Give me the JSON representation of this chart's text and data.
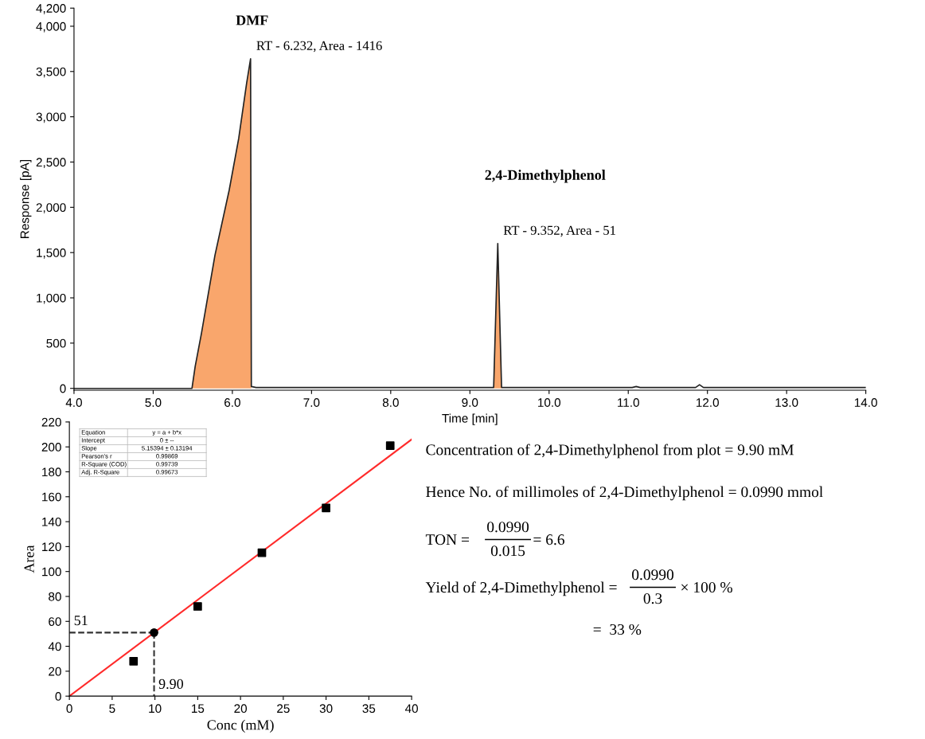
{
  "chart_data": [
    {
      "type": "line",
      "xlabel": "Time [min]",
      "ylabel": "Response [pA]",
      "xlim": [
        4.0,
        14.0
      ],
      "xticks": [
        {
          "value": 4,
          "label": "4.0"
        },
        {
          "value": 5,
          "label": "5.0"
        },
        {
          "value": 6,
          "label": "6.0"
        },
        {
          "value": 7,
          "label": "7.0"
        },
        {
          "value": 8,
          "label": "8.0"
        },
        {
          "value": 9,
          "label": "9.0"
        },
        {
          "value": 10,
          "label": "10.0"
        },
        {
          "value": 11,
          "label": "11.0"
        },
        {
          "value": 12,
          "label": "12.0"
        },
        {
          "value": 13,
          "label": "13.0"
        },
        {
          "value": 14,
          "label": "14.0"
        }
      ],
      "ylim": [
        -20,
        4200
      ],
      "yticks": [
        0,
        500,
        {
          "value": 1000,
          "label": "1,000"
        },
        {
          "value": 1500,
          "label": "1,500"
        },
        {
          "value": 2000,
          "label": "2,000"
        },
        {
          "value": 2500,
          "label": "2,500"
        },
        {
          "value": 3000,
          "label": "3,000"
        },
        {
          "value": 3500,
          "label": "3,500"
        },
        {
          "value": 4000,
          "label": "4,000"
        },
        {
          "value": 4200,
          "label": "4,200"
        }
      ],
      "series": [
        {
          "type": "area",
          "color": "#f9a66c",
          "x": [
            5.49,
            5.53,
            5.61,
            5.78,
            5.96,
            6.08,
            6.18,
            6.23,
            6.24
          ],
          "values": [
            0,
            240,
            610,
            1470,
            2190,
            2760,
            3370,
            3640,
            0
          ]
        },
        {
          "type": "area",
          "color": "#f9a66c",
          "x": [
            9.3,
            9.352,
            9.4
          ],
          "values": [
            0,
            1600,
            0
          ]
        },
        {
          "type": "line",
          "color": "#222222",
          "x": [
            4.0,
            5.49,
            5.53,
            5.61,
            5.78,
            5.96,
            6.08,
            6.18,
            6.23,
            6.24,
            6.3,
            9.3,
            9.352,
            9.4,
            11.05,
            11.1,
            11.15,
            11.85,
            11.9,
            11.95,
            14.0
          ],
          "values": [
            0,
            0,
            240,
            610,
            1470,
            2190,
            2760,
            3370,
            3640,
            20,
            10,
            10,
            1600,
            10,
            10,
            20,
            10,
            10,
            40,
            10,
            10
          ]
        }
      ],
      "annotations": [
        "DMF",
        {
          "text": "RT - 6.232, Area - 1416",
          "x": 6.232,
          "y": 3640
        },
        "2,4-Dimethylphenol",
        {
          "text": "RT - 9.352, Area - 51",
          "x": 9.352,
          "y": 1600
        }
      ]
    },
    {
      "type": "scatter",
      "xlabel": "Conc (mM)",
      "ylabel": "Area",
      "xlim": [
        0,
        40
      ],
      "xticks": [
        0,
        5,
        10,
        15,
        20,
        25,
        30,
        35,
        40
      ],
      "ylim": [
        0,
        220
      ],
      "yticks": [
        0,
        20,
        40,
        60,
        80,
        100,
        120,
        140,
        160,
        180,
        200,
        220
      ],
      "series": [
        {
          "type": "line",
          "color": "#ff2a2a",
          "x": [
            0,
            40
          ],
          "values": [
            0,
            206
          ],
          "marker": "none",
          "line_style": "solid"
        },
        {
          "type": "line",
          "color": "#333333",
          "x": [
            0,
            9.9
          ],
          "values": [
            51,
            51
          ],
          "marker": "none",
          "line_style": "dashed"
        },
        {
          "type": "line",
          "color": "#333333",
          "x": [
            9.9,
            9.9
          ],
          "values": [
            51,
            0
          ],
          "marker": "none",
          "line_style": "dashed"
        },
        {
          "type": "scatter",
          "color": "#000000",
          "x": [
            7.5,
            15,
            22.5,
            30,
            37.5
          ],
          "values": [
            28,
            72,
            115,
            151,
            201
          ],
          "marker": "square"
        },
        {
          "type": "scatter",
          "color": "#000000",
          "x": [
            9.9
          ],
          "values": [
            51
          ],
          "marker": "circle"
        }
      ],
      "annotations": [
        "Equation",
        "y = a + b*x",
        "Intercept",
        "0 ± --",
        "Slope",
        "5.15394 ± 0.13194",
        "Pearson's r",
        "0.99869",
        "R-Square (COD)",
        "0.99739",
        "Adj. R-Square",
        "0.99673",
        {
          "text": "51",
          "x": 0,
          "y": 51
        },
        {
          "text": "9.90",
          "x": 9.9,
          "y": 0
        }
      ]
    },
    {
      "type": "other",
      "annotations": [
        "Concentration of 2,4-Dimethylphenol from plot = 9.90 mM",
        "Hence No. of millimoles of 2,4-Dimethylphenol = 0.0990 mmol",
        "TON = ",
        "0.0990",
        "0.015",
        "= 6.6",
        "Yield of 2,4-Dimethylphenol = ",
        "0.0990",
        "0.3",
        "× 100 %",
        "=  33 %"
      ]
    }
  ]
}
